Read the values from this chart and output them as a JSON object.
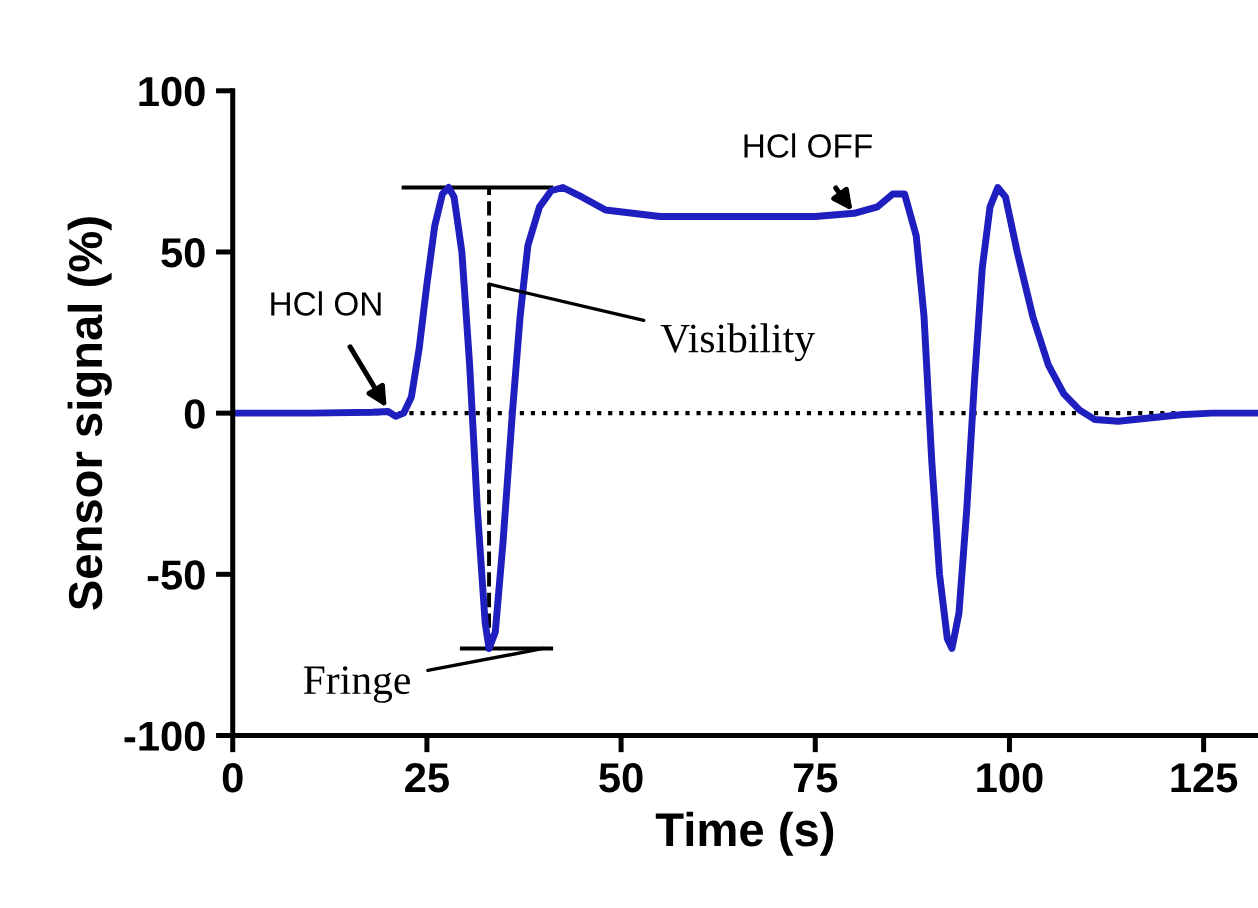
{
  "chart_data": {
    "type": "line",
    "xlabel": "Time (s)",
    "ylabel": "Sensor signal (%)",
    "xlim": [
      0,
      132
    ],
    "xticks": [
      0,
      25,
      50,
      75,
      100,
      125
    ],
    "ylim": [
      -100,
      100
    ],
    "yticks": [
      -100,
      -50,
      0,
      50,
      100
    ],
    "grid": false,
    "marker": "none",
    "line_style": "solid",
    "ref_lines": [
      {
        "axis": "y",
        "value": 0,
        "label": null,
        "color": "#000000",
        "line_style": "dotted"
      }
    ],
    "annotations": [
      {
        "text": "HCl ON",
        "x": 20,
        "y": 1
      },
      {
        "text": "HCl OFF",
        "x": 80,
        "y": 62
      },
      {
        "text": "Visibility",
        "x": 33,
        "y": 40
      },
      {
        "text": "Fringe",
        "x": 40,
        "y": -73
      }
    ],
    "series": [
      {
        "color": "#000000",
        "x": [
          22,
          41
        ],
        "values": [
          70,
          70
        ]
      },
      {
        "color": "#000000",
        "x": [
          29.5,
          41
        ],
        "values": [
          -73,
          -73
        ]
      },
      {
        "color": "#000000",
        "x": [
          33,
          33
        ],
        "values": [
          -73,
          70
        ],
        "line_style": "dashed"
      },
      {
        "color": "#1f1fc0",
        "x": [
          0,
          10,
          18,
          20,
          21,
          22,
          23,
          24,
          25,
          26,
          27,
          27.8,
          28.5,
          29.5,
          30.5,
          31.5,
          32.5,
          33,
          33.8,
          34.8,
          36,
          37,
          38,
          39.5,
          41,
          42.5,
          45,
          48,
          55,
          65,
          75,
          80,
          83,
          85,
          86.5,
          88,
          89,
          90,
          91,
          92,
          92.6,
          93.5,
          94.5,
          95.5,
          96.5,
          97.5,
          98.5,
          99.5,
          101,
          103,
          105,
          107,
          109,
          111,
          114,
          118,
          122,
          126,
          132
        ],
        "values": [
          0,
          0,
          0.3,
          0.5,
          -1,
          0,
          5,
          20,
          40,
          58,
          68,
          70,
          67,
          50,
          15,
          -30,
          -65,
          -73,
          -68,
          -40,
          0,
          30,
          52,
          64,
          69,
          70,
          67,
          63,
          61,
          61,
          61,
          62,
          64,
          68,
          68,
          55,
          30,
          -15,
          -50,
          -70,
          -73,
          -62,
          -30,
          10,
          45,
          64,
          70,
          67,
          50,
          30,
          15,
          6,
          1,
          -2,
          -2.5,
          -1.5,
          -0.5,
          0,
          0
        ]
      }
    ]
  }
}
